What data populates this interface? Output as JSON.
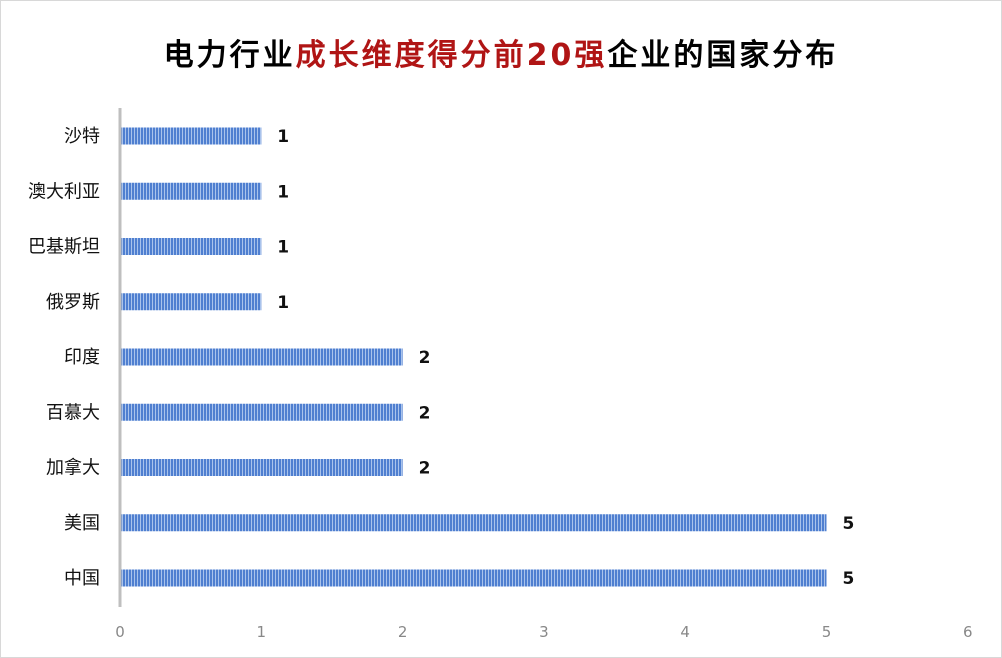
{
  "chart_data": {
    "type": "bar",
    "orientation": "horizontal",
    "title": {
      "prefix": "电力行业",
      "highlight": "成长维度得分前20强",
      "suffix": "企业的国家分布"
    },
    "categories": [
      "沙特",
      "澳大利亚",
      "巴基斯坦",
      "俄罗斯",
      "印度",
      "百慕大",
      "加拿大",
      "美国",
      "中国"
    ],
    "values": [
      1,
      1,
      1,
      1,
      2,
      2,
      2,
      5,
      5
    ],
    "xlim": [
      0,
      6
    ],
    "xticks": [
      "0",
      "1",
      "2",
      "3",
      "4",
      "5",
      "6"
    ],
    "xlabel": "",
    "ylabel": "",
    "grid": false,
    "legend": "none",
    "data_labels": true,
    "colors": {
      "bar": "#4f7fd0",
      "stripe": "#a9c3ec",
      "title_highlight": "#b01515",
      "axis": "#bfbfbf"
    }
  }
}
